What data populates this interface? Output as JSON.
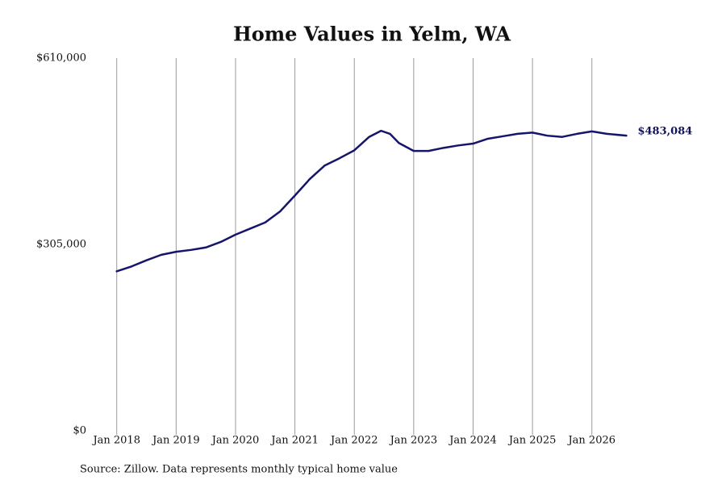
{
  "chart_data": {
    "type": "line",
    "title": "Home Values in Yelm, WA",
    "source": "Source: Zillow. Data represents monthly typical home value",
    "x": [
      2018.0,
      2018.25,
      2018.5,
      2018.75,
      2019.0,
      2019.25,
      2019.5,
      2019.75,
      2020.0,
      2020.25,
      2020.5,
      2020.75,
      2021.0,
      2021.25,
      2021.5,
      2021.75,
      2022.0,
      2022.25,
      2022.45,
      2022.6,
      2022.75,
      2023.0,
      2023.25,
      2023.5,
      2023.75,
      2024.0,
      2024.25,
      2024.5,
      2024.75,
      2025.0,
      2025.25,
      2025.5,
      2025.75,
      2026.0,
      2026.25,
      2026.58
    ],
    "series": [
      {
        "color": "#15156a",
        "values": [
          261000,
          269000,
          279000,
          288000,
          293000,
          296000,
          300000,
          309000,
          321000,
          331000,
          341000,
          359000,
          385000,
          412000,
          434000,
          446000,
          459000,
          481000,
          491000,
          486000,
          471000,
          458000,
          458000,
          463000,
          467000,
          470000,
          478000,
          482000,
          486000,
          488000,
          483000,
          481000,
          486000,
          490000,
          486000,
          483084
        ]
      }
    ],
    "last_value_label": "$483,084",
    "xlim": [
      2017.8,
      2026.9
    ],
    "xticks": [
      {
        "value": 2018,
        "label": "Jan 2018"
      },
      {
        "value": 2019,
        "label": "Jan 2019"
      },
      {
        "value": 2020,
        "label": "Jan 2020"
      },
      {
        "value": 2021,
        "label": "Jan 2021"
      },
      {
        "value": 2022,
        "label": "Jan 2022"
      },
      {
        "value": 2023,
        "label": "Jan 2023"
      },
      {
        "value": 2024,
        "label": "Jan 2024"
      },
      {
        "value": 2025,
        "label": "Jan 2025"
      },
      {
        "value": 2026,
        "label": "Jan 2026"
      }
    ],
    "ylim": [
      0,
      610000
    ],
    "yticks": [
      {
        "value": 0,
        "label": "$0"
      },
      {
        "value": 305000,
        "label": "$305,000"
      },
      {
        "value": 610000,
        "label": "$610,000"
      }
    ],
    "grid": "x"
  }
}
